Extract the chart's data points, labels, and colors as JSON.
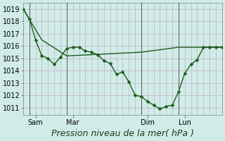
{
  "background_color": "#d0ece8",
  "grid_color": "#c0b0c0",
  "line_color": "#1a5c1a",
  "title": "Pression niveau de la mer( hPa )",
  "yticks": [
    1011,
    1012,
    1013,
    1014,
    1015,
    1016,
    1017,
    1018,
    1019
  ],
  "ylim": [
    1010.4,
    1019.5
  ],
  "xlim": [
    0,
    96
  ],
  "xtick_positions": [
    6,
    24,
    60,
    78
  ],
  "xtick_labels": [
    "Sam",
    "Mar",
    "Dim",
    "Lun"
  ],
  "vline_positions": [
    3,
    21,
    57,
    75
  ],
  "series1_x": [
    0,
    3,
    6,
    9,
    12,
    15,
    18,
    21,
    24,
    27,
    30,
    33,
    36,
    39,
    42,
    45,
    48,
    51,
    54,
    57,
    60,
    63,
    66,
    69,
    72,
    75,
    78,
    81,
    84,
    87,
    90,
    93,
    96
  ],
  "series1_y": [
    1019.0,
    1018.2,
    1016.5,
    1015.2,
    1015.0,
    1014.5,
    1015.1,
    1015.8,
    1015.9,
    1015.9,
    1015.6,
    1015.5,
    1015.3,
    1014.8,
    1014.6,
    1013.7,
    1013.9,
    1013.1,
    1012.0,
    1011.9,
    1011.5,
    1011.2,
    1010.9,
    1011.1,
    1011.2,
    1012.3,
    1013.8,
    1014.5,
    1014.9,
    1015.9,
    1015.9,
    1015.9,
    1015.9
  ],
  "series2_x": [
    0,
    9,
    21,
    57,
    75,
    96
  ],
  "series2_y": [
    1019.0,
    1016.5,
    1015.2,
    1015.5,
    1015.9,
    1015.9
  ],
  "marker_size": 2.5,
  "linewidth": 1.0,
  "title_fontsize": 9,
  "tick_fontsize": 7,
  "figsize": [
    3.2,
    2.0
  ],
  "dpi": 100
}
